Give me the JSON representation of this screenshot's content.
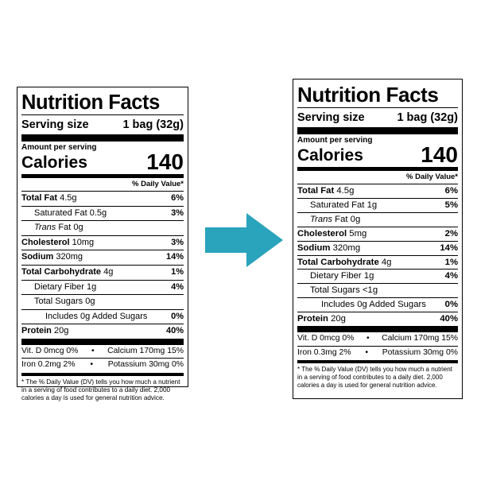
{
  "left": {
    "title": "Nutrition Facts",
    "serving_label": "Serving size",
    "serving_value": "1 bag (32g)",
    "amount_per_serving": "Amount per serving",
    "calories_label": "Calories",
    "calories_value": "140",
    "dv_header": "% Daily Value*",
    "rows": [
      {
        "name": "Total Fat",
        "amount": "4.5g",
        "dv": "6%"
      },
      {
        "name": "Saturated Fat",
        "amount": "0.5g",
        "dv": "3%"
      },
      {
        "name": "Trans",
        "name_rest": " Fat",
        "amount": "0g",
        "dv": ""
      },
      {
        "name": "Cholesterol",
        "amount": "10mg",
        "dv": "3%"
      },
      {
        "name": "Sodium",
        "amount": "320mg",
        "dv": "14%"
      },
      {
        "name": "Total Carbohydrate",
        "amount": "4g",
        "dv": "1%"
      },
      {
        "name": "Dietary Fiber",
        "amount": "1g",
        "dv": "4%"
      },
      {
        "name": "Total Sugars",
        "amount": "0g",
        "dv": ""
      },
      {
        "name": "Includes 0g Added Sugars",
        "amount": "",
        "dv": "0%"
      },
      {
        "name": "Protein",
        "amount": "20g",
        "dv": "40%"
      }
    ],
    "vitamins": [
      {
        "a": "Vit. D 0mcg 0%",
        "b": "Calcium 170mg 15%"
      },
      {
        "a": "Iron 0.2mg 2%",
        "b": "Potassium 30mg 0%"
      }
    ],
    "footnote": "* The % Daily Value (DV) tells you how much a nutrient in a serving of food contributes to a daily diet. 2,000 calories a day is used for general nutrition advice."
  },
  "right": {
    "title": "Nutrition Facts",
    "serving_label": "Serving size",
    "serving_value": "1 bag (32g)",
    "amount_per_serving": "Amount per serving",
    "calories_label": "Calories",
    "calories_value": "140",
    "dv_header": "% Daily Value*",
    "rows": [
      {
        "name": "Total Fat",
        "amount": "4.5g",
        "dv": "6%"
      },
      {
        "name": "Saturated Fat",
        "amount": "1g",
        "dv": "5%"
      },
      {
        "name": "Trans",
        "name_rest": " Fat",
        "amount": "0g",
        "dv": ""
      },
      {
        "name": "Cholesterol",
        "amount": "5mg",
        "dv": "2%"
      },
      {
        "name": "Sodium",
        "amount": "320mg",
        "dv": "14%"
      },
      {
        "name": "Total Carbohydrate",
        "amount": "4g",
        "dv": "1%"
      },
      {
        "name": "Dietary Fiber",
        "amount": "1g",
        "dv": "4%"
      },
      {
        "name": "Total Sugars",
        "amount": "<1g",
        "dv": ""
      },
      {
        "name": "Includes 0g Added Sugars",
        "amount": "",
        "dv": "0%"
      },
      {
        "name": "Protein",
        "amount": "20g",
        "dv": "40%"
      }
    ],
    "vitamins": [
      {
        "a": "Vit. D 0mcg 0%",
        "b": "Calcium 170mg 15%"
      },
      {
        "a": "Iron 0.3mg 2%",
        "b": "Potassium 30mg 0%"
      }
    ],
    "footnote": "* The % Daily Value (DV) tells you how much a nutrient in a serving of food contributes to a daily diet. 2,000 calories a day is used for general nutrition advice."
  },
  "colors": {
    "arrow": "#2aa3bd",
    "ink": "#000000",
    "background": "#ffffff"
  },
  "icons": {
    "arrow": "right-arrow-icon"
  }
}
